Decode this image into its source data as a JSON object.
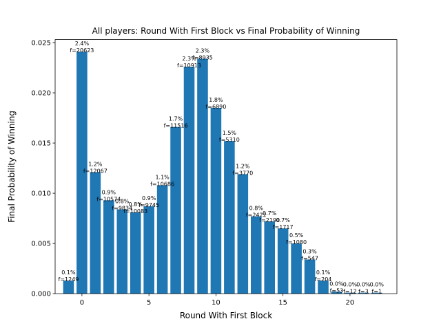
{
  "chart_data": {
    "type": "bar",
    "title": "All players: Round With First Block vs Final Probability of Winning",
    "xlabel": "Round With First Block",
    "ylabel": "Final Probability of Winning",
    "xlim": [
      -2.0,
      23.5
    ],
    "ylim": [
      0,
      0.0253
    ],
    "xticks": [
      0,
      5,
      10,
      15,
      20
    ],
    "yticks": [
      0.0,
      0.005,
      0.01,
      0.015,
      0.02,
      0.025
    ],
    "ytick_labels": [
      "0.000",
      "0.005",
      "0.010",
      "0.015",
      "0.020",
      "0.025"
    ],
    "grid": false,
    "color": "#1f77b4",
    "x": [
      -1,
      0,
      1,
      2,
      3,
      4,
      5,
      6,
      7,
      8,
      9,
      10,
      11,
      12,
      13,
      14,
      15,
      16,
      17,
      18,
      19,
      20,
      21,
      22
    ],
    "values": [
      0.0013,
      0.0241,
      0.0121,
      0.0093,
      0.0084,
      0.0081,
      0.0087,
      0.0108,
      0.0166,
      0.0226,
      0.0234,
      0.0185,
      0.0152,
      0.0119,
      0.0077,
      0.0072,
      0.0065,
      0.005,
      0.0034,
      0.0013,
      0.0002,
      0.0001,
      0.0001,
      0.0001
    ],
    "pct_labels": [
      "0.1%",
      "2.4%",
      "1.2%",
      "0.9%",
      "0.8%",
      "0.8%",
      "0.9%",
      "1.1%",
      "1.7%",
      "2.3%",
      "2.3%",
      "1.8%",
      "1.5%",
      "1.2%",
      "0.8%",
      "0.7%",
      "0.7%",
      "0.5%",
      "0.3%",
      "0.1%",
      "0.0%",
      "0.0%",
      "0.0%",
      "0.0%"
    ],
    "freq_labels": [
      "f=1249",
      "f=20623",
      "f=12067",
      "f=10574",
      "f=9834",
      "f=10083",
      "f=9745",
      "f=10686",
      "f=11516",
      "f=10913",
      "f=8935",
      "f=6890",
      "f=5310",
      "f=3770",
      "f=2422",
      "f=2190",
      "f=1717",
      "f=1080",
      "f=547",
      "f=204",
      "f=53",
      "f=12",
      "f=3",
      "f=1"
    ]
  }
}
